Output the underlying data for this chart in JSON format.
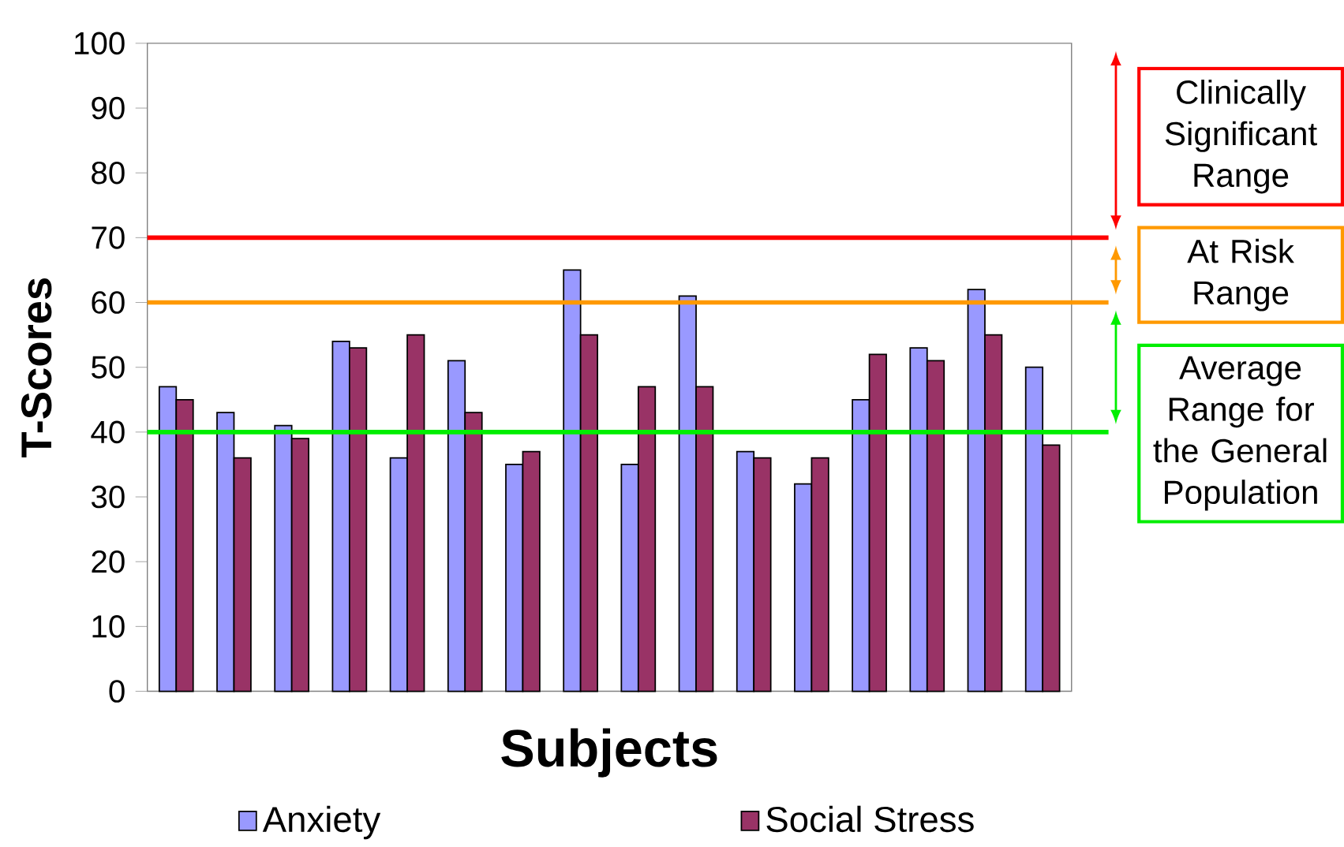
{
  "chart_data": {
    "type": "bar",
    "xlabel": "Subjects",
    "ylabel": "T-Scores",
    "categories": [
      null,
      null,
      null,
      null,
      null,
      null,
      null,
      null,
      null,
      null,
      null,
      null,
      null,
      null,
      null,
      null
    ],
    "series": [
      {
        "name": "Anxiety",
        "color": "#9999ff",
        "values": [
          47,
          43,
          41,
          54,
          36,
          51,
          35,
          65,
          35,
          61,
          37,
          32,
          45,
          53,
          62,
          50
        ]
      },
      {
        "name": "Social Stress",
        "color": "#993366",
        "values": [
          45,
          36,
          39,
          53,
          55,
          43,
          37,
          55,
          47,
          47,
          36,
          36,
          52,
          51,
          55,
          38
        ]
      }
    ],
    "ylim": [
      0,
      100
    ],
    "yticks": [
      0,
      10,
      20,
      30,
      40,
      50,
      60,
      70,
      80,
      90,
      100
    ],
    "ref_lines": [
      {
        "axis": "y",
        "value": 70,
        "label": "Clinically Significant Range",
        "color": "#ff0000"
      },
      {
        "axis": "y",
        "value": 60,
        "label": "At Risk Range",
        "color": "#ff9900"
      },
      {
        "axis": "y",
        "value": 40,
        "label": "Average Range for the General Population",
        "color": "#00ee00"
      }
    ],
    "legend": "bottom"
  }
}
